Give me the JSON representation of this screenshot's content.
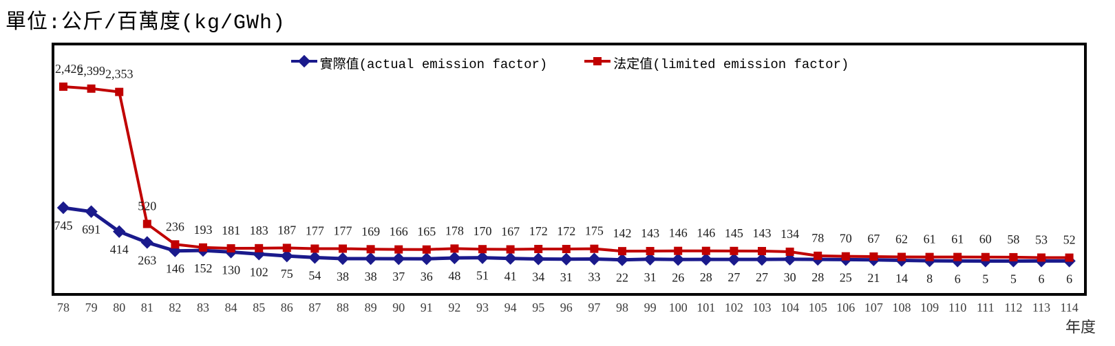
{
  "title": "單位:公斤/百萬度(kg/GWh)",
  "x_axis_title": "年度",
  "chart_data": {
    "type": "line",
    "title": "單位:公斤/百萬度(kg/GWh)",
    "xlabel": "年度",
    "ylim": [
      0,
      3050
    ],
    "grid": false,
    "legend_position": "top-center",
    "x": [
      78,
      79,
      80,
      81,
      82,
      83,
      84,
      85,
      86,
      87,
      88,
      89,
      90,
      91,
      92,
      93,
      94,
      95,
      96,
      97,
      98,
      99,
      100,
      101,
      102,
      103,
      104,
      105,
      106,
      107,
      108,
      109,
      110,
      111,
      112,
      113,
      114
    ],
    "series": [
      {
        "name": "實際值(actual emission factor)",
        "color": "#1a1a8c",
        "marker": "diamond",
        "label_position": "below",
        "values": [
          745,
          691,
          414,
          263,
          146,
          152,
          130,
          102,
          75,
          54,
          38,
          38,
          37,
          36,
          48,
          51,
          41,
          34,
          31,
          33,
          22,
          31,
          26,
          28,
          27,
          27,
          30,
          28,
          25,
          21,
          14,
          8,
          6,
          5,
          5,
          6,
          6
        ]
      },
      {
        "name": "法定值(limited emission factor)",
        "color": "#c00000",
        "marker": "square",
        "label_position": "above",
        "values": [
          2426,
          2399,
          2353,
          520,
          236,
          193,
          181,
          183,
          187,
          177,
          177,
          169,
          166,
          165,
          178,
          170,
          167,
          172,
          172,
          175,
          142,
          143,
          146,
          146,
          145,
          143,
          134,
          78,
          70,
          67,
          62,
          61,
          61,
          60,
          58,
          53,
          52
        ]
      }
    ],
    "label_color": "#1c1c1c",
    "tick_color": "#3d3d3d"
  }
}
